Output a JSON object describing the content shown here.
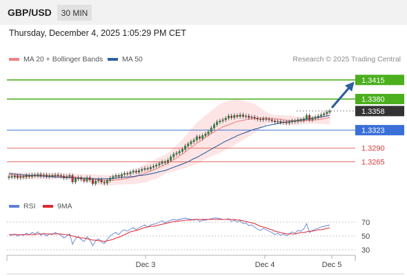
{
  "header": {
    "symbol": "GBP/USD",
    "timeframe": "30 MIN",
    "datetime": "Thursday, December 4, 2025 1:05:29 PM CET"
  },
  "legend": {
    "ma20_label": "MA 20 + Bollinger Bands",
    "ma20_color": "#f08080",
    "ma50_label": "MA 50",
    "ma50_color": "#2e5f9e",
    "credit": "Research © 2025 Trading Central"
  },
  "rsi_legend": {
    "rsi_label": "RSI",
    "rsi_color": "#5b7fd6",
    "ma_label": "9MA",
    "ma_color": "#e0262e"
  },
  "chart_data": [
    {
      "type": "candlestick",
      "title": "GBP/USD 30 MIN",
      "ylim": [
        1.3205,
        1.3435
      ],
      "x_ticks": [
        "Dec 3",
        "Dec 4",
        "Dec 5"
      ],
      "levels": [
        {
          "value": 1.3415,
          "label": "1.3415",
          "kind": "resistance",
          "color": "#4caf1e"
        },
        {
          "value": 1.338,
          "label": "1.3380",
          "kind": "resistance",
          "color": "#4caf1e"
        },
        {
          "value": 1.3358,
          "label": "1.3358",
          "kind": "last-price",
          "color": "#333333"
        },
        {
          "value": 1.3323,
          "label": "1.3323",
          "kind": "pivot",
          "color": "#3a6fd8"
        },
        {
          "value": 1.329,
          "label": "1.3290",
          "kind": "support",
          "color": "#e05050"
        },
        {
          "value": 1.3265,
          "label": "1.3265",
          "kind": "support",
          "color": "#e05050"
        }
      ],
      "close": [
        1.3238,
        1.3237,
        1.3239,
        1.3236,
        1.3238,
        1.3237,
        1.324,
        1.3238,
        1.3241,
        1.324,
        1.3242,
        1.3239,
        1.3241,
        1.3238,
        1.324,
        1.3239,
        1.3241,
        1.324,
        1.3239,
        1.3236,
        1.3238,
        1.324,
        1.3228,
        1.3234,
        1.3236,
        1.3233,
        1.323,
        1.3236,
        1.3232,
        1.3225,
        1.323,
        1.3232,
        1.3228,
        1.3226,
        1.3231,
        1.3235,
        1.3238,
        1.324,
        1.3238,
        1.3242,
        1.3244,
        1.3243,
        1.3246,
        1.3248,
        1.3246,
        1.3249,
        1.3251,
        1.3253,
        1.3252,
        1.3255,
        1.3257,
        1.3259,
        1.3262,
        1.3265,
        1.3264,
        1.3268,
        1.3274,
        1.3279,
        1.3281,
        1.3284,
        1.3288,
        1.3294,
        1.3298,
        1.3302,
        1.3305,
        1.3311,
        1.3308,
        1.3313,
        1.3316,
        1.332,
        1.3327,
        1.3333,
        1.3338,
        1.334,
        1.3342,
        1.3345,
        1.3349,
        1.3346,
        1.335,
        1.3348,
        1.3351,
        1.3348,
        1.3349,
        1.3346,
        1.3347,
        1.3345,
        1.3343,
        1.3342,
        1.3344,
        1.3343,
        1.3342,
        1.334,
        1.3338,
        1.3339,
        1.3337,
        1.3338,
        1.3336,
        1.3338,
        1.334,
        1.3339,
        1.3342,
        1.3341,
        1.3344,
        1.335,
        1.3342,
        1.3345,
        1.3347,
        1.3349,
        1.3351,
        1.3353,
        1.3356,
        1.3358
      ],
      "ma20": [
        1.3242,
        1.3241,
        1.324,
        1.324,
        1.3239,
        1.3239,
        1.3239,
        1.3239,
        1.3239,
        1.3239,
        1.3239,
        1.3239,
        1.3239,
        1.3239,
        1.3239,
        1.3239,
        1.3239,
        1.3239,
        1.3239,
        1.3238,
        1.3238,
        1.3238,
        1.3237,
        1.3237,
        1.3236,
        1.3236,
        1.3235,
        1.3235,
        1.3234,
        1.3233,
        1.3233,
        1.3232,
        1.3232,
        1.3231,
        1.3231,
        1.3231,
        1.3231,
        1.3232,
        1.3232,
        1.3233,
        1.3234,
        1.3235,
        1.3236,
        1.3237,
        1.3238,
        1.324,
        1.3242,
        1.3244,
        1.3246,
        1.3248,
        1.325,
        1.3252,
        1.3255,
        1.3257,
        1.326,
        1.3263,
        1.3266,
        1.3269,
        1.3272,
        1.3276,
        1.3279,
        1.3283,
        1.3287,
        1.3291,
        1.3295,
        1.3299,
        1.3302,
        1.3306,
        1.331,
        1.3313,
        1.3317,
        1.332,
        1.3323,
        1.3326,
        1.3329,
        1.3331,
        1.3333,
        1.3335,
        1.3337,
        1.3339,
        1.334,
        1.3341,
        1.3342,
        1.3343,
        1.3344,
        1.3344,
        1.3345,
        1.3345,
        1.3345,
        1.3345,
        1.3345,
        1.3344,
        1.3344,
        1.3343,
        1.3343,
        1.3342,
        1.3341,
        1.3341,
        1.3341,
        1.334,
        1.334,
        1.334,
        1.334,
        1.3341,
        1.3341,
        1.3341,
        1.3342,
        1.3342,
        1.3343,
        1.3344,
        1.3345,
        1.3346
      ],
      "ma50": [
        1.3244,
        1.3243,
        1.3243,
        1.3242,
        1.3242,
        1.3241,
        1.3241,
        1.324,
        1.324,
        1.324,
        1.3239,
        1.3239,
        1.3239,
        1.3238,
        1.3238,
        1.3238,
        1.3237,
        1.3237,
        1.3237,
        1.3236,
        1.3236,
        1.3236,
        1.3236,
        1.3235,
        1.3235,
        1.3235,
        1.3235,
        1.3234,
        1.3234,
        1.3234,
        1.3234,
        1.3234,
        1.3234,
        1.3234,
        1.3234,
        1.3234,
        1.3235,
        1.3235,
        1.3236,
        1.3236,
        1.3237,
        1.3237,
        1.3238,
        1.3238,
        1.3239,
        1.324,
        1.324,
        1.3241,
        1.3242,
        1.3243,
        1.3244,
        1.3245,
        1.3247,
        1.3248,
        1.3249,
        1.3251,
        1.3253,
        1.3255,
        1.3257,
        1.3259,
        1.3261,
        1.3263,
        1.3265,
        1.3268,
        1.3271,
        1.3273,
        1.3276,
        1.3279,
        1.3282,
        1.3285,
        1.3288,
        1.3291,
        1.3294,
        1.3297,
        1.33,
        1.3303,
        1.3305,
        1.3308,
        1.331,
        1.3313,
        1.3315,
        1.3317,
        1.3319,
        1.3321,
        1.3323,
        1.3325,
        1.3326,
        1.3328,
        1.3329,
        1.3331,
        1.3332,
        1.3333,
        1.3334,
        1.3335,
        1.3336,
        1.3337,
        1.3338,
        1.3339,
        1.3339,
        1.334,
        1.3341,
        1.3342,
        1.3342,
        1.3343,
        1.3344,
        1.3345,
        1.3345,
        1.3346,
        1.3347,
        1.3348,
        1.3349,
        1.335
      ]
    },
    {
      "type": "line",
      "title": "RSI",
      "ylim": [
        20,
        80
      ],
      "y_ticks": [
        30,
        50,
        70
      ],
      "series": [
        {
          "name": "RSI",
          "values": [
            52,
            51,
            53,
            50,
            52,
            51,
            54,
            52,
            55,
            53,
            56,
            51,
            54,
            50,
            53,
            52,
            55,
            53,
            51,
            47,
            50,
            53,
            38,
            46,
            49,
            45,
            42,
            49,
            44,
            36,
            43,
            46,
            41,
            39,
            45,
            50,
            53,
            55,
            52,
            57,
            59,
            57,
            60,
            62,
            59,
            62,
            64,
            66,
            63,
            66,
            67,
            68,
            70,
            72,
            69,
            71,
            73,
            74,
            73,
            74,
            75,
            76,
            75,
            74,
            73,
            74,
            71,
            73,
            73,
            74,
            75,
            76,
            76,
            75,
            74,
            74,
            75,
            71,
            73,
            70,
            72,
            68,
            69,
            65,
            66,
            63,
            60,
            58,
            61,
            59,
            57,
            55,
            52,
            54,
            51,
            53,
            50,
            53,
            56,
            54,
            58,
            57,
            60,
            68,
            55,
            58,
            60,
            61,
            63,
            64,
            65,
            66
          ]
        },
        {
          "name": "9MA",
          "values": [
            52,
            52,
            52,
            52,
            52,
            52,
            52,
            52,
            52,
            52,
            53,
            53,
            53,
            53,
            53,
            53,
            53,
            53,
            53,
            52,
            52,
            51,
            50,
            49,
            48,
            47,
            47,
            46,
            45,
            44,
            44,
            43,
            43,
            42,
            43,
            44,
            45,
            47,
            48,
            50,
            52,
            54,
            56,
            57,
            58,
            59,
            61,
            62,
            63,
            64,
            64,
            65,
            66,
            67,
            68,
            69,
            70,
            71,
            71,
            72,
            72,
            73,
            73,
            73,
            74,
            74,
            74,
            74,
            74,
            74,
            74,
            74,
            74,
            74,
            74,
            74,
            74,
            74,
            74,
            73,
            73,
            72,
            71,
            70,
            69,
            68,
            66,
            64,
            63,
            62,
            60,
            59,
            57,
            56,
            55,
            54,
            53,
            53,
            53,
            53,
            54,
            55,
            55,
            56,
            57,
            57,
            58,
            59,
            59,
            60,
            61,
            62
          ]
        }
      ]
    }
  ]
}
